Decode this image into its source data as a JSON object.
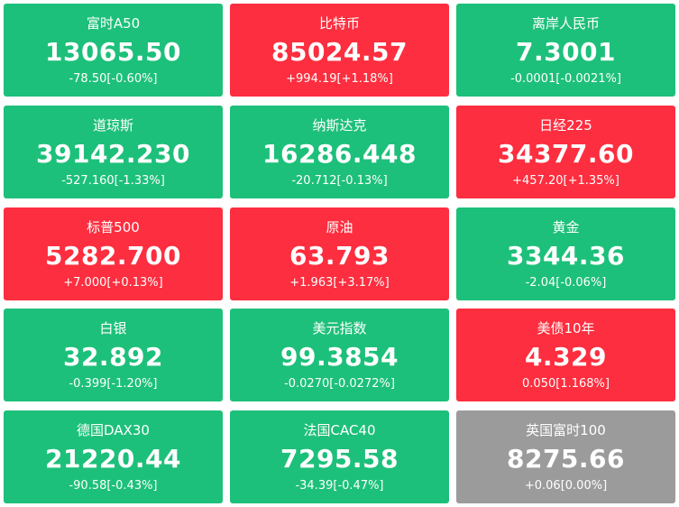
{
  "colors": {
    "down": "#1dc07a",
    "up": "#fd2e3f",
    "flat": "#9b9b9b",
    "text": "#ffffff"
  },
  "tiles": [
    {
      "name": "富时A50",
      "price": "13065.50",
      "change": "-78.50[-0.60%]",
      "trend": "down"
    },
    {
      "name": "比特币",
      "price": "85024.57",
      "change": "+994.19[+1.18%]",
      "trend": "up"
    },
    {
      "name": "离岸人民币",
      "price": "7.3001",
      "change": "-0.0001[-0.0021%]",
      "trend": "down"
    },
    {
      "name": "道琼斯",
      "price": "39142.230",
      "change": "-527.160[-1.33%]",
      "trend": "down"
    },
    {
      "name": "纳斯达克",
      "price": "16286.448",
      "change": "-20.712[-0.13%]",
      "trend": "down"
    },
    {
      "name": "日经225",
      "price": "34377.60",
      "change": "+457.20[+1.35%]",
      "trend": "up"
    },
    {
      "name": "标普500",
      "price": "5282.700",
      "change": "+7.000[+0.13%]",
      "trend": "up"
    },
    {
      "name": "原油",
      "price": "63.793",
      "change": "+1.963[+3.17%]",
      "trend": "up"
    },
    {
      "name": "黄金",
      "price": "3344.36",
      "change": "-2.04[-0.06%]",
      "trend": "down"
    },
    {
      "name": "白银",
      "price": "32.892",
      "change": "-0.399[-1.20%]",
      "trend": "down"
    },
    {
      "name": "美元指数",
      "price": "99.3854",
      "change": "-0.0270[-0.0272%]",
      "trend": "down"
    },
    {
      "name": "美债10年",
      "price": "4.329",
      "change": "0.050[1.168%]",
      "trend": "up"
    },
    {
      "name": "德国DAX30",
      "price": "21220.44",
      "change": "-90.58[-0.43%]",
      "trend": "down"
    },
    {
      "name": "法国CAC40",
      "price": "7295.58",
      "change": "-34.39[-0.47%]",
      "trend": "down"
    },
    {
      "name": "英国富时100",
      "price": "8275.66",
      "change": "+0.06[0.00%]",
      "trend": "flat"
    }
  ]
}
